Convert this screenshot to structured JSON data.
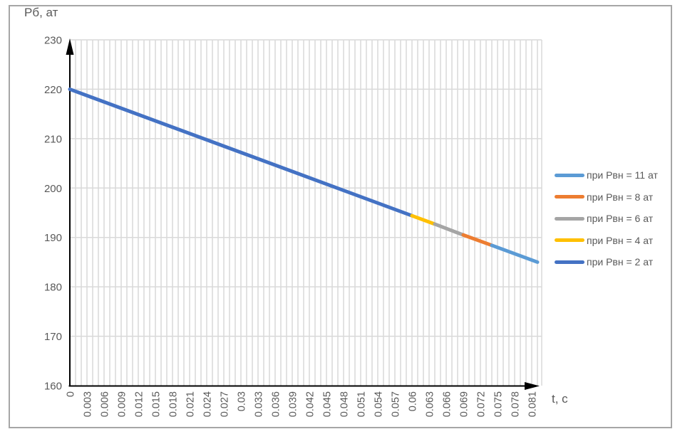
{
  "chart_data": {
    "type": "line",
    "title": "Рб, ат",
    "xlabel": "t, с",
    "ylabel": "Рб, ат",
    "xlim": [
      0,
      0.082
    ],
    "ylim": [
      160,
      230
    ],
    "x_ticks": [
      "0",
      "0.003",
      "0.006",
      "0.009",
      "0.012",
      "0.015",
      "0.018",
      "0.021",
      "0.024",
      "0.027",
      "0.03",
      "0.033",
      "0.036",
      "0.039",
      "0.042",
      "0.045",
      "0.048",
      "0.051",
      "0.054",
      "0.057",
      "0.06",
      "0.063",
      "0.066",
      "0.069",
      "0.072",
      "0.075",
      "0.078",
      "0.081"
    ],
    "y_ticks": [
      "230",
      "220",
      "210",
      "200",
      "190",
      "180",
      "170",
      "160"
    ],
    "grid": {
      "vertical_minor_step": 0.001,
      "horizontal_step": 10,
      "visible": true
    },
    "legend_position": "right",
    "series": [
      {
        "name": "при Рвн = 11 ат",
        "color": "#5B9BD5",
        "x": [
          0.074,
          0.082
        ],
        "y": [
          188.4,
          185.0
        ]
      },
      {
        "name": "при Рвн = 8 ат",
        "color": "#ED7D31",
        "x": [
          0.069,
          0.074
        ],
        "y": [
          190.5,
          188.4
        ]
      },
      {
        "name": "при Рвн = 6 ат",
        "color": "#A5A5A5",
        "x": [
          0.064,
          0.069
        ],
        "y": [
          192.7,
          190.5
        ]
      },
      {
        "name": "при Рвн = 4 ат",
        "color": "#FFC000",
        "x": [
          0.06,
          0.064
        ],
        "y": [
          194.4,
          192.7
        ]
      },
      {
        "name": "при Рвн = 2 ат",
        "color": "#4472C4",
        "x": [
          0.0,
          0.06
        ],
        "y": [
          220.0,
          194.4
        ]
      }
    ]
  },
  "colors": {
    "background": "#FFFFFF",
    "frame_border": "#A6A6A6",
    "gridline": "#D9D9D9",
    "axis": "#000000",
    "text": "#595959"
  }
}
